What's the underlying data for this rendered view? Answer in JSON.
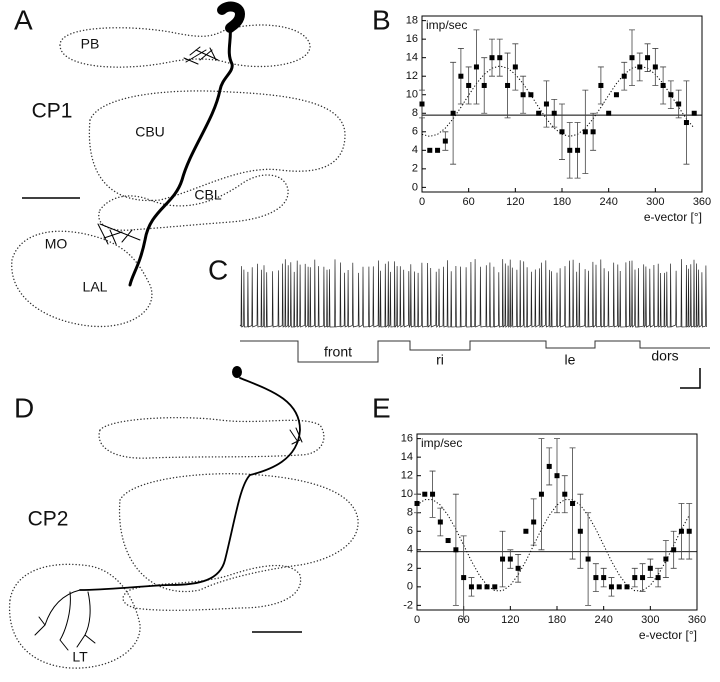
{
  "panels": {
    "a": "A",
    "b": "B",
    "c": "C",
    "d": "D",
    "e": "E"
  },
  "figure_a": {
    "cell": "CP1",
    "regions": [
      "PB",
      "CBU",
      "CBL",
      "MO",
      "LAL"
    ]
  },
  "figure_c": {
    "stimuli": [
      "front",
      "ri",
      "le",
      "dors"
    ]
  },
  "figure_d": {
    "cell": "CP2",
    "regions": [
      "LT"
    ]
  },
  "chart_data": [
    {
      "type": "scatter",
      "y_label": "imp/sec",
      "x_label": "e-vector [°]",
      "x": [
        0,
        10,
        20,
        30,
        40,
        50,
        60,
        70,
        80,
        90,
        100,
        110,
        120,
        130,
        140,
        150,
        160,
        170,
        180,
        190,
        200,
        210,
        220,
        230,
        240,
        250,
        260,
        270,
        280,
        290,
        300,
        310,
        320,
        330,
        340,
        350
      ],
      "values": [
        9,
        4,
        4,
        5,
        8,
        12,
        11,
        13,
        11,
        14,
        14,
        11,
        13,
        10,
        10,
        8,
        9,
        8,
        6,
        4,
        4,
        6,
        6,
        11,
        8,
        10,
        12,
        14,
        13,
        14,
        13,
        11,
        10,
        9,
        7,
        8
      ],
      "errors": [
        1.5,
        0,
        0,
        1,
        5.5,
        3,
        2,
        4,
        3,
        2,
        2,
        3.5,
        2.5,
        2,
        0,
        0,
        2.5,
        1.5,
        3,
        3,
        3,
        4.5,
        2,
        2,
        0,
        0,
        1.5,
        3,
        1.5,
        1.5,
        2,
        2,
        1.5,
        1.5,
        4.5,
        0
      ],
      "fit": [
        5.73,
        5.5,
        5.73,
        6.39,
        7.4,
        8.64,
        9.96,
        11.2,
        12.21,
        12.87,
        13.1,
        12.87,
        12.21,
        11.2,
        9.96,
        8.64,
        7.4,
        6.39,
        5.73,
        5.5,
        5.73,
        6.39,
        7.4,
        8.64,
        9.96,
        11.2,
        12.21,
        12.87,
        13.1,
        12.87,
        12.21,
        11.2,
        9.96,
        8.64,
        7.4,
        6.39
      ],
      "mean": 7.8,
      "xlim": [
        0,
        360
      ],
      "xticks": [
        0,
        60,
        120,
        180,
        240,
        300,
        360
      ],
      "ylim": [
        -0.5,
        18.5
      ],
      "yticks": [
        0,
        2,
        4,
        6,
        8,
        10,
        12,
        14,
        16,
        18
      ]
    },
    {
      "type": "scatter",
      "y_label": "imp/sec",
      "x_label": "e-vector [°]",
      "x": [
        0,
        10,
        20,
        30,
        40,
        50,
        60,
        70,
        80,
        90,
        100,
        110,
        120,
        130,
        140,
        150,
        160,
        170,
        180,
        190,
        200,
        210,
        220,
        230,
        240,
        250,
        260,
        270,
        280,
        290,
        300,
        310,
        320,
        330,
        340,
        350
      ],
      "values": [
        9,
        10,
        10,
        7,
        5,
        4,
        1,
        0,
        0,
        0,
        0,
        3,
        3,
        2,
        6,
        7,
        10,
        13,
        12,
        10,
        9,
        6,
        3,
        1,
        1,
        0,
        0,
        0,
        1,
        1,
        2,
        1,
        3,
        4,
        6,
        6
      ],
      "errors": [
        1,
        0,
        2.5,
        1.5,
        0,
        6,
        4.5,
        1,
        0,
        0,
        0,
        3,
        1,
        1.5,
        0,
        2.5,
        6,
        2,
        4,
        2,
        6,
        4,
        5,
        1.5,
        1,
        1,
        0,
        0,
        1,
        1.5,
        1,
        1,
        2,
        2,
        3,
        3
      ],
      "fit": [
        8.83,
        9.42,
        9.42,
        8.83,
        7.71,
        6.21,
        4.5,
        2.79,
        1.29,
        0.17,
        -0.42,
        -0.42,
        0.17,
        1.29,
        2.79,
        4.5,
        6.21,
        7.71,
        8.83,
        9.42,
        9.42,
        8.83,
        7.71,
        6.21,
        4.5,
        2.79,
        1.29,
        0.17,
        -0.42,
        -0.42,
        0.17,
        1.29,
        2.79,
        4.5,
        6.21,
        7.71
      ],
      "mean": 3.8,
      "xlim": [
        0,
        360
      ],
      "xticks": [
        0,
        60,
        120,
        180,
        240,
        300,
        360
      ],
      "ylim": [
        -2.5,
        16.5
      ],
      "yticks": [
        -2,
        0,
        2,
        4,
        6,
        8,
        10,
        12,
        14,
        16
      ]
    }
  ]
}
